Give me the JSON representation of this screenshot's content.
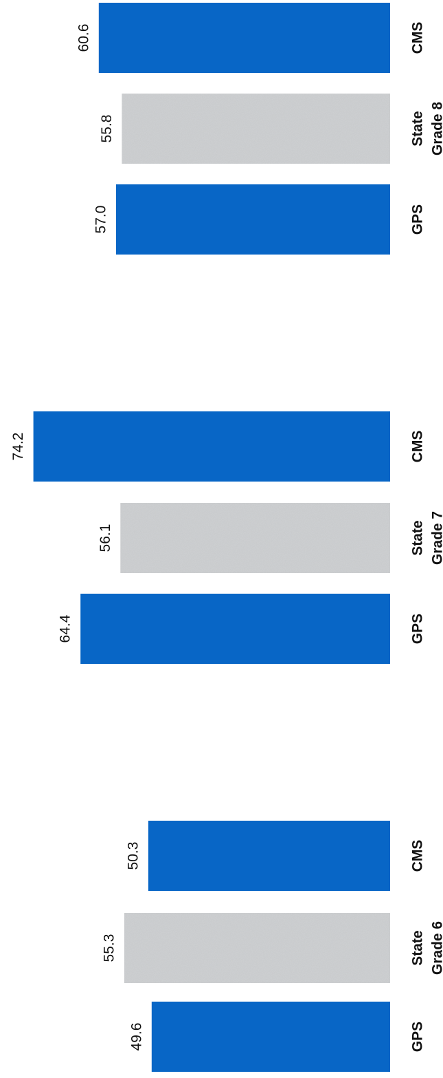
{
  "chart_data": {
    "type": "bar",
    "orientation": "rotated-90",
    "groups": [
      {
        "name": "Grade 6",
        "categories": [
          "GPS",
          "State",
          "CMS"
        ],
        "values": [
          49.6,
          55.3,
          50.3
        ],
        "colors": [
          "#0866c6",
          "#cfd1d3",
          "#0866c6"
        ]
      },
      {
        "name": "Grade 7",
        "categories": [
          "GPS",
          "State",
          "CMS"
        ],
        "values": [
          64.4,
          56.1,
          74.2
        ],
        "colors": [
          "#0866c6",
          "#cfd1d3",
          "#0866c6"
        ]
      },
      {
        "name": "Grade 8",
        "categories": [
          "GPS",
          "State",
          "CMS"
        ],
        "values": [
          57.0,
          55.8,
          60.6
        ],
        "colors": [
          "#0866c6",
          "#cfd1d3",
          "#0866c6"
        ]
      }
    ],
    "title": "",
    "xlabel": "",
    "ylabel": "",
    "grid": false,
    "legend": "none"
  }
}
